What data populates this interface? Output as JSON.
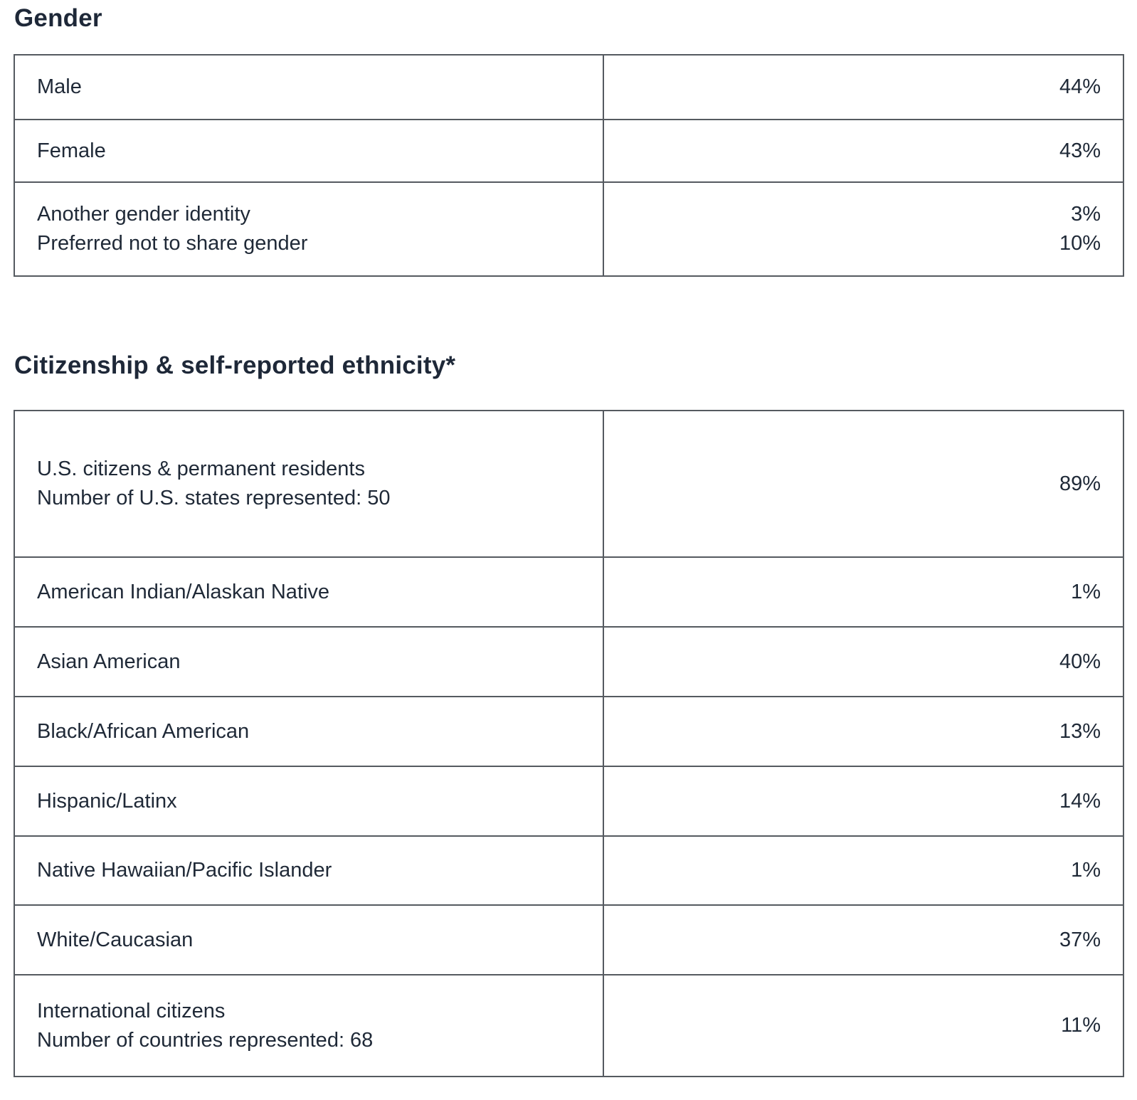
{
  "gender": {
    "title": "Gender",
    "rows": [
      {
        "labels": [
          "Male"
        ],
        "values": [
          "44%"
        ]
      },
      {
        "labels": [
          "Female"
        ],
        "values": [
          "43%"
        ]
      },
      {
        "labels": [
          "Another gender identity",
          "Preferred not to share gender"
        ],
        "values": [
          "3%",
          "10%"
        ]
      }
    ]
  },
  "ethnicity": {
    "title": "Citizenship & self-reported ethnicity*",
    "rows": [
      {
        "labels": [
          "U.S. citizens & permanent residents",
          "Number of U.S. states represented: 50"
        ],
        "values": [
          "89%"
        ]
      },
      {
        "labels": [
          "American Indian/Alaskan Native"
        ],
        "values": [
          "1%"
        ]
      },
      {
        "labels": [
          "Asian American"
        ],
        "values": [
          "40%"
        ]
      },
      {
        "labels": [
          "Black/African American"
        ],
        "values": [
          "13%"
        ]
      },
      {
        "labels": [
          "Hispanic/Latinx"
        ],
        "values": [
          "14%"
        ]
      },
      {
        "labels": [
          "Native Hawaiian/Pacific Islander"
        ],
        "values": [
          "1%"
        ]
      },
      {
        "labels": [
          "White/Caucasian"
        ],
        "values": [
          "37%"
        ]
      },
      {
        "labels": [
          "International citizens",
          "Number of countries represented: 68"
        ],
        "values": [
          "11%"
        ]
      }
    ]
  }
}
